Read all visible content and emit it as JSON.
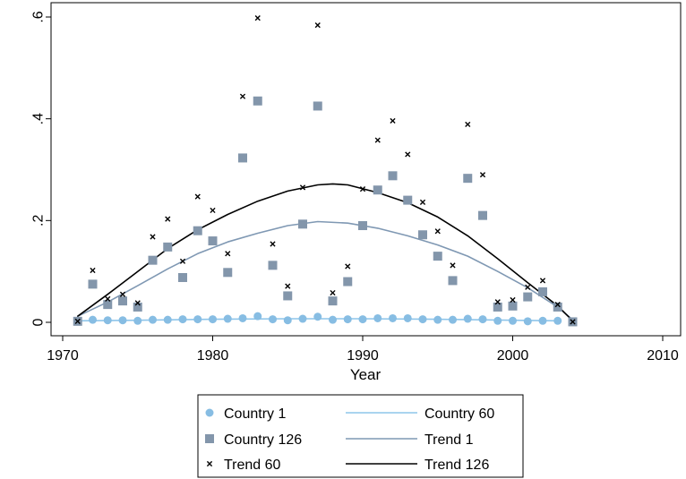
{
  "chart_data": {
    "type": "scatter",
    "xlabel": "Year",
    "ylabel": "",
    "xlim": [
      1970,
      2010
    ],
    "ylim": [
      0,
      0.6
    ],
    "x_ticks": [
      1970,
      1980,
      1990,
      2000,
      2010
    ],
    "x_tick_labels": [
      "1970",
      "1980",
      "1990",
      "2000",
      "2010"
    ],
    "y_ticks": [
      0,
      0.2,
      0.4,
      0.6
    ],
    "y_tick_labels": [
      "0",
      ".2",
      ".4",
      ".6"
    ],
    "grid": false,
    "legend_position": "bottom",
    "legend": [
      {
        "label": "Country 1",
        "kind": "circle",
        "color": "#87bde3"
      },
      {
        "label": "Country 60",
        "kind": "line",
        "color": "#8ec5ea"
      },
      {
        "label": "Country 126",
        "kind": "square",
        "color": "#8396ab"
      },
      {
        "label": "Trend 1",
        "kind": "line",
        "color": "#7f98b3"
      },
      {
        "label": "Trend 60",
        "kind": "x",
        "color": "#000000"
      },
      {
        "label": "Trend 126",
        "kind": "line",
        "color": "#000000"
      }
    ],
    "scatter_series": [
      {
        "name": "Country 1",
        "marker": "circle",
        "color": "#87bde3",
        "points": [
          [
            1971,
            0.003
          ],
          [
            1972,
            0.005
          ],
          [
            1973,
            0.004
          ],
          [
            1974,
            0.004
          ],
          [
            1975,
            0.003
          ],
          [
            1976,
            0.005
          ],
          [
            1977,
            0.005
          ],
          [
            1978,
            0.006
          ],
          [
            1979,
            0.006
          ],
          [
            1980,
            0.006
          ],
          [
            1981,
            0.007
          ],
          [
            1982,
            0.008
          ],
          [
            1983,
            0.012
          ],
          [
            1984,
            0.006
          ],
          [
            1985,
            0.004
          ],
          [
            1986,
            0.007
          ],
          [
            1987,
            0.011
          ],
          [
            1988,
            0.005
          ],
          [
            1989,
            0.006
          ],
          [
            1990,
            0.006
          ],
          [
            1991,
            0.008
          ],
          [
            1992,
            0.008
          ],
          [
            1993,
            0.008
          ],
          [
            1994,
            0.006
          ],
          [
            1995,
            0.005
          ],
          [
            1996,
            0.005
          ],
          [
            1997,
            0.007
          ],
          [
            1998,
            0.006
          ],
          [
            1999,
            0.003
          ],
          [
            2000,
            0.003
          ],
          [
            2001,
            0.002
          ],
          [
            2002,
            0.003
          ],
          [
            2003,
            0.003
          ],
          [
            2004,
            0.001
          ]
        ]
      },
      {
        "name": "Country 126",
        "marker": "square",
        "color": "#8396ab",
        "points": [
          [
            1971,
            0.002
          ],
          [
            1972,
            0.075
          ],
          [
            1973,
            0.035
          ],
          [
            1974,
            0.042
          ],
          [
            1975,
            0.03
          ],
          [
            1976,
            0.122
          ],
          [
            1977,
            0.148
          ],
          [
            1978,
            0.088
          ],
          [
            1979,
            0.18
          ],
          [
            1980,
            0.16
          ],
          [
            1981,
            0.098
          ],
          [
            1982,
            0.323
          ],
          [
            1983,
            0.435
          ],
          [
            1984,
            0.112
          ],
          [
            1985,
            0.052
          ],
          [
            1986,
            0.193
          ],
          [
            1987,
            0.425
          ],
          [
            1988,
            0.042
          ],
          [
            1989,
            0.08
          ],
          [
            1990,
            0.19
          ],
          [
            1991,
            0.26
          ],
          [
            1992,
            0.288
          ],
          [
            1993,
            0.24
          ],
          [
            1994,
            0.172
          ],
          [
            1995,
            0.13
          ],
          [
            1996,
            0.082
          ],
          [
            1997,
            0.283
          ],
          [
            1998,
            0.21
          ],
          [
            1999,
            0.03
          ],
          [
            2000,
            0.032
          ],
          [
            2001,
            0.05
          ],
          [
            2002,
            0.06
          ],
          [
            2003,
            0.03
          ],
          [
            2004,
            0.001
          ]
        ]
      },
      {
        "name": "Trend 60",
        "marker": "x",
        "color": "#000000",
        "points": [
          [
            1971,
            0.002
          ],
          [
            1972,
            0.102
          ],
          [
            1973,
            0.046
          ],
          [
            1974,
            0.055
          ],
          [
            1975,
            0.038
          ],
          [
            1976,
            0.168
          ],
          [
            1977,
            0.203
          ],
          [
            1978,
            0.12
          ],
          [
            1979,
            0.247
          ],
          [
            1980,
            0.22
          ],
          [
            1981,
            0.135
          ],
          [
            1982,
            0.444
          ],
          [
            1983,
            0.598
          ],
          [
            1984,
            0.154
          ],
          [
            1985,
            0.071
          ],
          [
            1986,
            0.265
          ],
          [
            1987,
            0.584
          ],
          [
            1988,
            0.058
          ],
          [
            1989,
            0.11
          ],
          [
            1990,
            0.262
          ],
          [
            1991,
            0.358
          ],
          [
            1992,
            0.396
          ],
          [
            1993,
            0.33
          ],
          [
            1994,
            0.236
          ],
          [
            1995,
            0.179
          ],
          [
            1996,
            0.112
          ],
          [
            1997,
            0.389
          ],
          [
            1998,
            0.29
          ],
          [
            1999,
            0.04
          ],
          [
            2000,
            0.044
          ],
          [
            2001,
            0.069
          ],
          [
            2002,
            0.082
          ],
          [
            2003,
            0.035
          ],
          [
            2004,
            0.001
          ]
        ]
      }
    ],
    "line_series": [
      {
        "name": "Country 60",
        "color": "#8ec5ea",
        "width": 1.6,
        "points": [
          [
            1971,
            0.003
          ],
          [
            1975,
            0.004
          ],
          [
            1980,
            0.006
          ],
          [
            1985,
            0.007
          ],
          [
            1990,
            0.007
          ],
          [
            1995,
            0.006
          ],
          [
            2000,
            0.004
          ],
          [
            2003,
            0.003
          ]
        ]
      },
      {
        "name": "Trend 1",
        "color": "#7f98b3",
        "width": 1.6,
        "points": [
          [
            1971,
            0.012
          ],
          [
            1973,
            0.04
          ],
          [
            1975,
            0.072
          ],
          [
            1977,
            0.105
          ],
          [
            1979,
            0.135
          ],
          [
            1981,
            0.158
          ],
          [
            1983,
            0.175
          ],
          [
            1985,
            0.19
          ],
          [
            1987,
            0.198
          ],
          [
            1989,
            0.195
          ],
          [
            1991,
            0.185
          ],
          [
            1993,
            0.17
          ],
          [
            1995,
            0.152
          ],
          [
            1997,
            0.13
          ],
          [
            1999,
            0.1
          ],
          [
            2001,
            0.068
          ],
          [
            2003,
            0.03
          ],
          [
            2004,
            0.005
          ]
        ]
      },
      {
        "name": "Trend 126",
        "color": "#000000",
        "width": 1.6,
        "points": [
          [
            1971,
            0.012
          ],
          [
            1973,
            0.055
          ],
          [
            1975,
            0.1
          ],
          [
            1977,
            0.145
          ],
          [
            1979,
            0.182
          ],
          [
            1981,
            0.212
          ],
          [
            1983,
            0.238
          ],
          [
            1985,
            0.258
          ],
          [
            1987,
            0.27
          ],
          [
            1988,
            0.272
          ],
          [
            1989,
            0.27
          ],
          [
            1991,
            0.255
          ],
          [
            1993,
            0.235
          ],
          [
            1995,
            0.207
          ],
          [
            1997,
            0.17
          ],
          [
            1999,
            0.125
          ],
          [
            2001,
            0.078
          ],
          [
            2003,
            0.032
          ],
          [
            2004,
            0.003
          ]
        ]
      }
    ]
  }
}
